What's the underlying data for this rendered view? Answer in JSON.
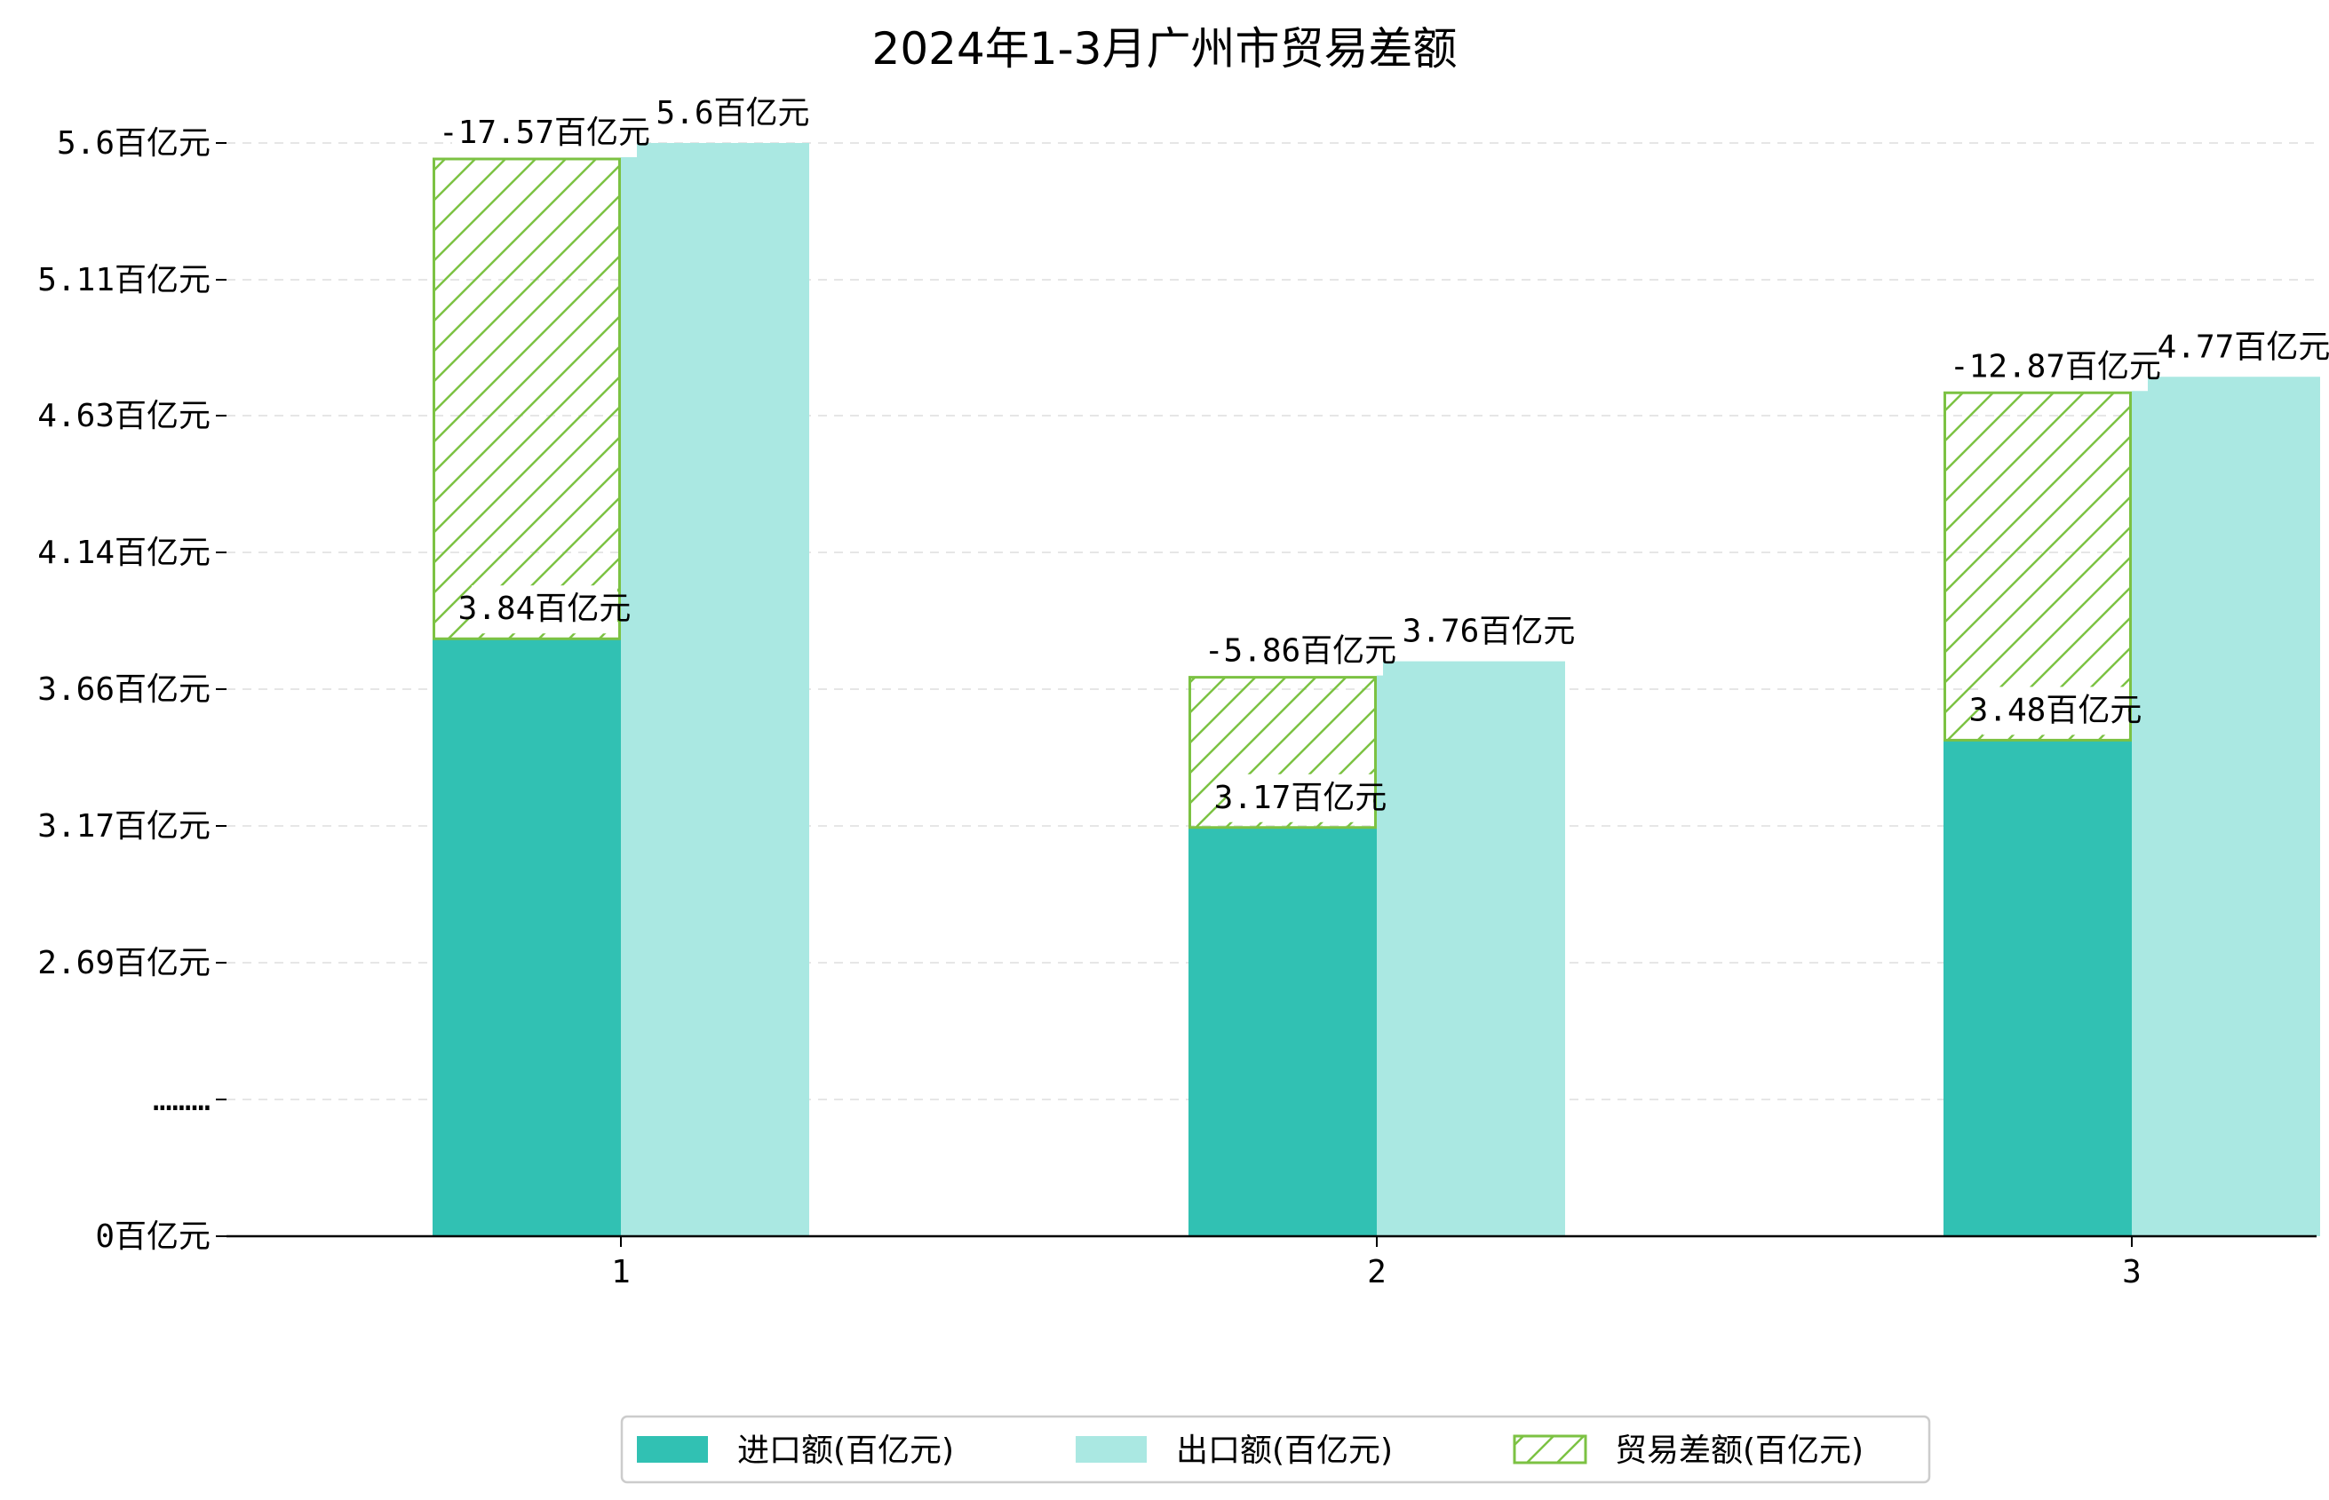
{
  "chart_data": {
    "type": "bar",
    "title": "2024年1-3月广州市贸易差额",
    "categories": [
      "1",
      "2",
      "3"
    ],
    "y_tick_labels": [
      "0百亿元",
      "………",
      "2.69百亿元",
      "3.17百亿元",
      "3.66百亿元",
      "4.14百亿元",
      "4.63百亿元",
      "5.11百亿元",
      "5.6百亿元"
    ],
    "ylim": [
      0,
      5.6
    ],
    "series": [
      {
        "name": "进口额(百亿元)",
        "values": [
          3.84,
          3.17,
          3.48
        ],
        "labels": [
          "3.84百亿元",
          "3.17百亿元",
          "3.48百亿元"
        ],
        "color": "#31c1b3"
      },
      {
        "name": "出口额(百亿元)",
        "values": [
          5.6,
          3.76,
          4.77
        ],
        "labels": [
          "5.6百亿元",
          "3.76百亿元",
          "4.77百亿元"
        ],
        "color": "#aae8e2"
      },
      {
        "name": "贸易差额(百亿元)",
        "values": [
          -17.57,
          -5.86,
          -12.87
        ],
        "labels": [
          "-17.57百亿元",
          "-5.86百亿元",
          "-12.87百亿元"
        ],
        "color": "#7cc243",
        "pattern": "hatch"
      }
    ],
    "grid": "horizontal dashed",
    "legend_position": "bottom-center"
  }
}
